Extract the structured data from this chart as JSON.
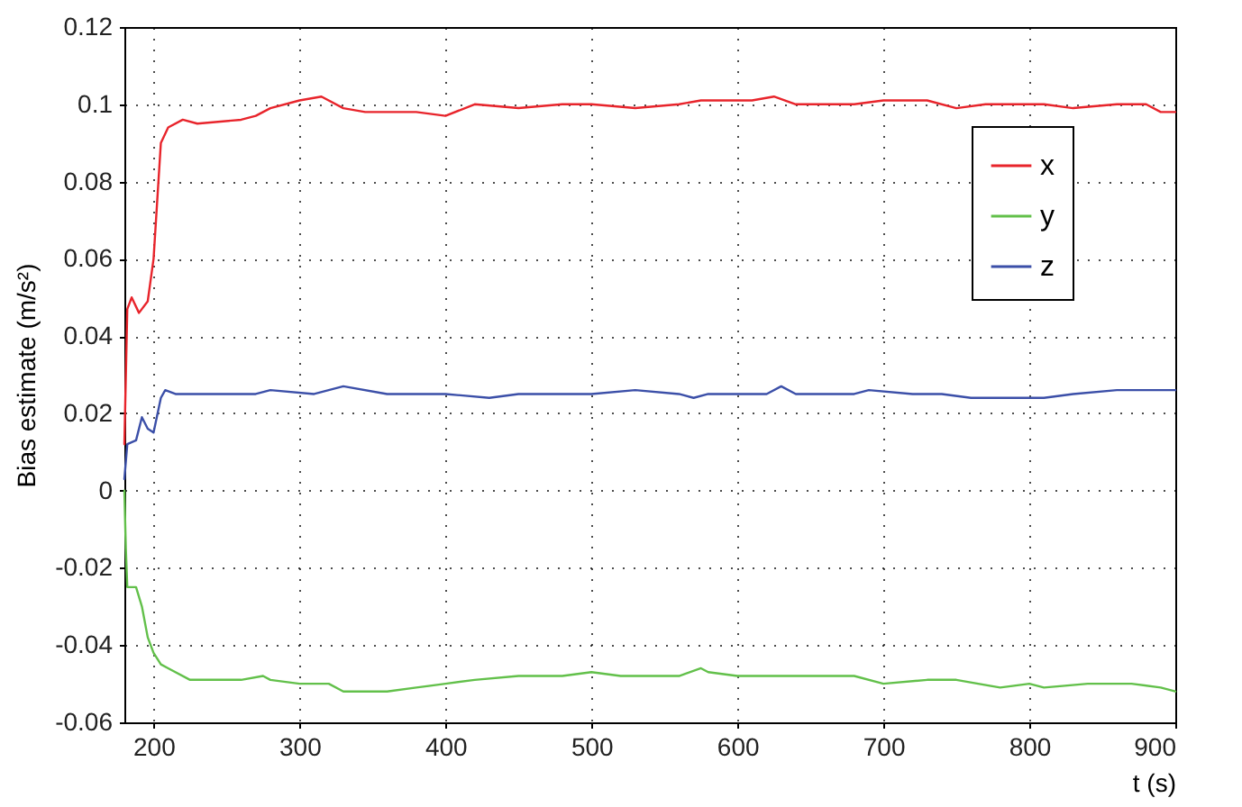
{
  "chart_data": {
    "type": "line",
    "xlabel": "t (s)",
    "ylabel": "Bias estimate (m/s²)",
    "xlim": [
      180,
      900
    ],
    "xticks": [
      200,
      300,
      400,
      500,
      600,
      700,
      800,
      900
    ],
    "ylim": [
      -0.06,
      0.12
    ],
    "yticks": [
      -0.06,
      -0.04,
      -0.02,
      0,
      0.02,
      0.04,
      0.06,
      0.08,
      0.1,
      0.12
    ],
    "grid": true,
    "legend": "top right",
    "line_style": "solid",
    "marker": "none",
    "series": [
      {
        "name": "x",
        "color": "#e8242b",
        "x": [
          180,
          182,
          185,
          190,
          196,
          200,
          205,
          210,
          220,
          230,
          260,
          270,
          280,
          300,
          315,
          330,
          345,
          380,
          400,
          420,
          450,
          480,
          500,
          530,
          560,
          575,
          610,
          625,
          640,
          680,
          700,
          730,
          750,
          770,
          810,
          830,
          860,
          880,
          890,
          900
        ],
        "values": [
          0.012,
          0.047,
          0.05,
          0.046,
          0.049,
          0.06,
          0.09,
          0.094,
          0.096,
          0.095,
          0.096,
          0.097,
          0.099,
          0.101,
          0.102,
          0.099,
          0.098,
          0.098,
          0.097,
          0.1,
          0.099,
          0.1,
          0.1,
          0.099,
          0.1,
          0.101,
          0.101,
          0.102,
          0.1,
          0.1,
          0.101,
          0.101,
          0.099,
          0.1,
          0.1,
          0.099,
          0.1,
          0.1,
          0.098,
          0.098
        ]
      },
      {
        "name": "y",
        "color": "#62c04a",
        "x": [
          180,
          181,
          182,
          188,
          192,
          196,
          200,
          205,
          210,
          225,
          260,
          275,
          280,
          300,
          320,
          330,
          360,
          380,
          400,
          420,
          450,
          480,
          500,
          520,
          560,
          575,
          580,
          600,
          620,
          660,
          680,
          700,
          730,
          750,
          780,
          800,
          810,
          840,
          870,
          890,
          900
        ],
        "values": [
          0.0,
          -0.015,
          -0.025,
          -0.025,
          -0.03,
          -0.038,
          -0.042,
          -0.045,
          -0.046,
          -0.049,
          -0.049,
          -0.048,
          -0.049,
          -0.05,
          -0.05,
          -0.052,
          -0.052,
          -0.051,
          -0.05,
          -0.049,
          -0.048,
          -0.048,
          -0.047,
          -0.048,
          -0.048,
          -0.046,
          -0.047,
          -0.048,
          -0.048,
          -0.048,
          -0.048,
          -0.05,
          -0.049,
          -0.049,
          -0.051,
          -0.05,
          -0.051,
          -0.05,
          -0.05,
          -0.051,
          -0.052
        ]
      },
      {
        "name": "z",
        "color": "#3b4fa8",
        "x": [
          180,
          182,
          188,
          192,
          196,
          200,
          205,
          208,
          215,
          240,
          270,
          280,
          310,
          320,
          330,
          360,
          400,
          430,
          450,
          480,
          500,
          530,
          560,
          570,
          580,
          620,
          630,
          640,
          680,
          690,
          720,
          740,
          760,
          800,
          810,
          830,
          860,
          880,
          900
        ],
        "values": [
          0.003,
          0.012,
          0.013,
          0.019,
          0.016,
          0.015,
          0.024,
          0.026,
          0.025,
          0.025,
          0.025,
          0.026,
          0.025,
          0.026,
          0.027,
          0.025,
          0.025,
          0.024,
          0.025,
          0.025,
          0.025,
          0.026,
          0.025,
          0.024,
          0.025,
          0.025,
          0.027,
          0.025,
          0.025,
          0.026,
          0.025,
          0.025,
          0.024,
          0.024,
          0.024,
          0.025,
          0.026,
          0.026,
          0.026
        ]
      }
    ]
  }
}
